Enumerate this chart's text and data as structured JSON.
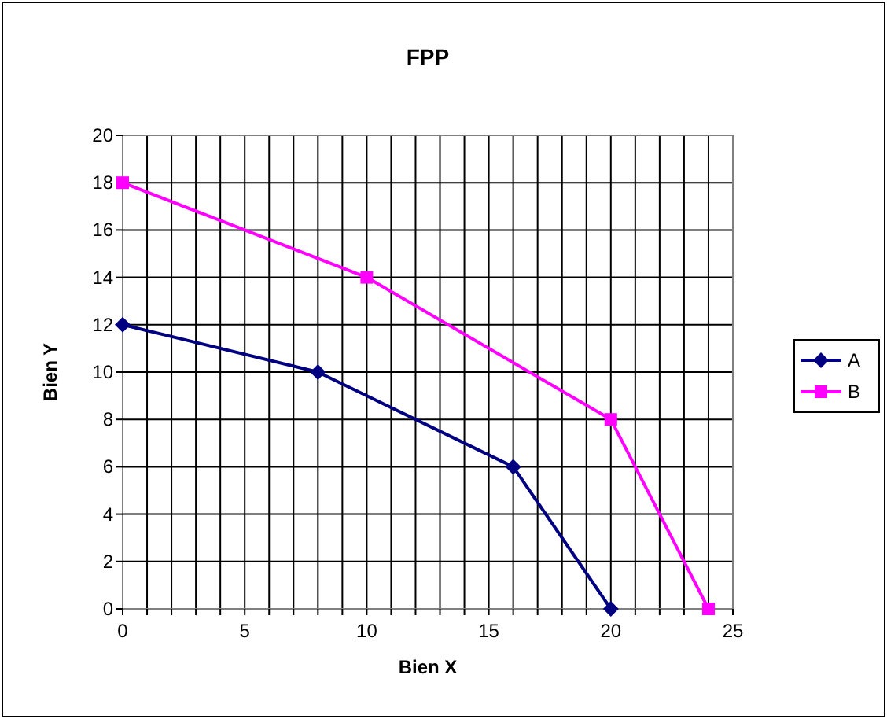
{
  "chart_data": {
    "type": "line",
    "title": "FPP",
    "xlabel": "Bien X",
    "ylabel": "Bien Y",
    "xlim": [
      0,
      25
    ],
    "ylim": [
      0,
      20
    ],
    "xticks": [
      0,
      {
        "value": 1,
        "label": null
      },
      {
        "value": 2,
        "label": null
      },
      {
        "value": 3,
        "label": null
      },
      {
        "value": 4,
        "label": null
      },
      5,
      {
        "value": 6,
        "label": null
      },
      {
        "value": 7,
        "label": null
      },
      {
        "value": 8,
        "label": null
      },
      {
        "value": 9,
        "label": null
      },
      10,
      {
        "value": 11,
        "label": null
      },
      {
        "value": 12,
        "label": null
      },
      {
        "value": 13,
        "label": null
      },
      {
        "value": 14,
        "label": null
      },
      15,
      {
        "value": 16,
        "label": null
      },
      {
        "value": 17,
        "label": null
      },
      {
        "value": 18,
        "label": null
      },
      {
        "value": 19,
        "label": null
      },
      20,
      {
        "value": 21,
        "label": null
      },
      {
        "value": 22,
        "label": null
      },
      {
        "value": 23,
        "label": null
      },
      {
        "value": 24,
        "label": null
      },
      25
    ],
    "yticks": [
      0,
      2,
      4,
      6,
      8,
      10,
      12,
      14,
      16,
      18,
      20
    ],
    "grid": true,
    "legend": "right",
    "line_style": "solid",
    "series": [
      {
        "name": "A",
        "color": "#000080",
        "marker": "diamond",
        "x": [
          0,
          8,
          16,
          20
        ],
        "values": [
          12,
          10,
          6,
          0
        ]
      },
      {
        "name": "B",
        "color": "#ff00ff",
        "marker": "square",
        "x": [
          0,
          10,
          20,
          24
        ],
        "values": [
          18,
          14,
          8,
          0
        ]
      }
    ]
  }
}
